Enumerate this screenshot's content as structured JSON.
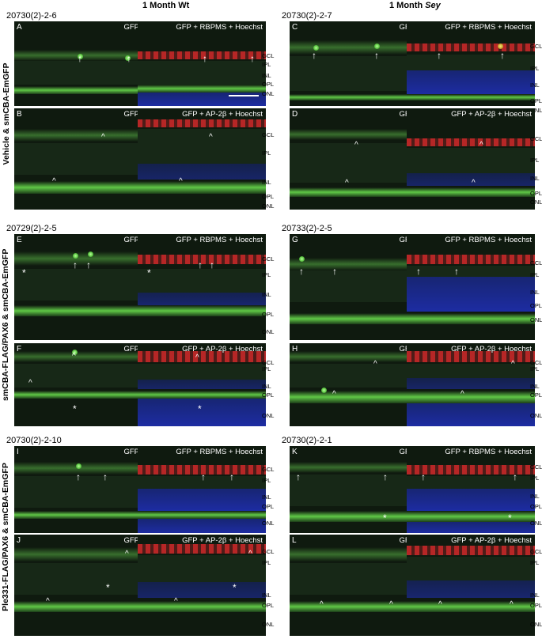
{
  "columns": {
    "left": "1 Month Wt",
    "right_prefix": "1 Month ",
    "right_italic": "Sey"
  },
  "row_labels": {
    "row1": "Vehicle & smCBA-EmGFP",
    "row2": "smCBA-FLAG/PAX6 & smCBA-EmGFP",
    "row3": "Ple331-FLAG/PAX6 & smCBA-EmGFP"
  },
  "sample_ids": {
    "r1_left": "20730(2)-2-6",
    "r1_right": "20730(2)-2-7",
    "r2_left": "20729(2)-2-5",
    "r2_right": "20733(2)-2-5",
    "r3_left": "20730(2)-2-10",
    "r3_right": "20730(2)-2-1"
  },
  "panel_letters": [
    "A",
    "B",
    "C",
    "D",
    "E",
    "F",
    "G",
    "H",
    "I",
    "J",
    "K",
    "L"
  ],
  "channel_labels": {
    "gfp": "GFP",
    "rbpms": "GFP + RBPMS + Hoechst",
    "ap2b": "GFP + AP-2β + Hoechst"
  },
  "layer_labels": [
    "GCL",
    "IPL",
    "INL",
    "OPL",
    "ONL"
  ],
  "markers": {
    "arrow": "↑",
    "caret": "^",
    "star": "*"
  }
}
